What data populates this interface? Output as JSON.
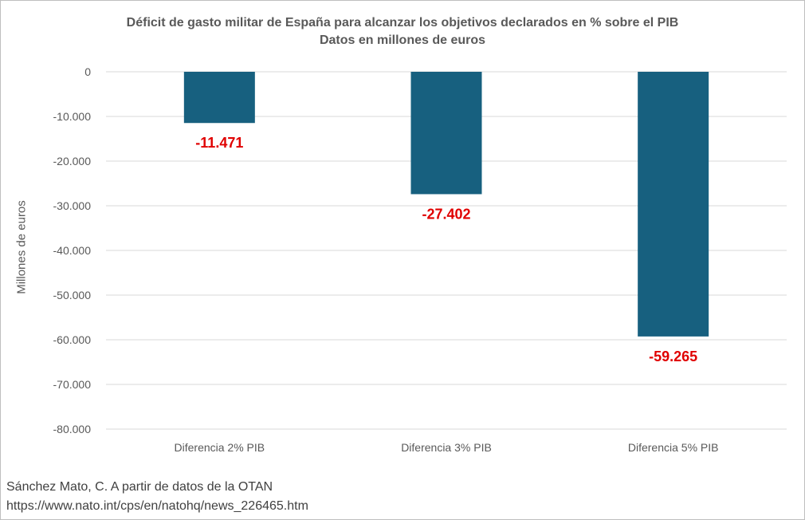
{
  "chart_data": {
    "type": "bar",
    "title": "Déficit de gasto militar de España para alcanzar los objetivos  declarados en % sobre el PIB",
    "subtitle": "Datos en millones de euros",
    "xlabel": "",
    "ylabel": "Millones de euros",
    "categories": [
      "Diferencia 2% PIB",
      "Diferencia 3% PIB",
      "Diferencia 5% PIB"
    ],
    "values": [
      -11471,
      -27402,
      -59265
    ],
    "data_labels": [
      "-11.471",
      "-27.402",
      "-59.265"
    ],
    "ylim": [
      -80000,
      0
    ],
    "yticks": [
      0,
      -10000,
      -20000,
      -30000,
      -40000,
      -50000,
      -60000,
      -70000,
      -80000
    ],
    "ytick_labels": [
      "0",
      "-10.000",
      "-20.000",
      "-30.000",
      "-40.000",
      "-50.000",
      "-60.000",
      "-70.000",
      "-80.000"
    ],
    "grid": true,
    "legend": "none",
    "bar_color": "#17607f",
    "label_color": "#e00000"
  },
  "source": {
    "line1": "Sánchez Mato, C.  A partir de datos de la OTAN",
    "line2": "https://www.nato.int/cps/en/natohq/news_226465.htm"
  }
}
